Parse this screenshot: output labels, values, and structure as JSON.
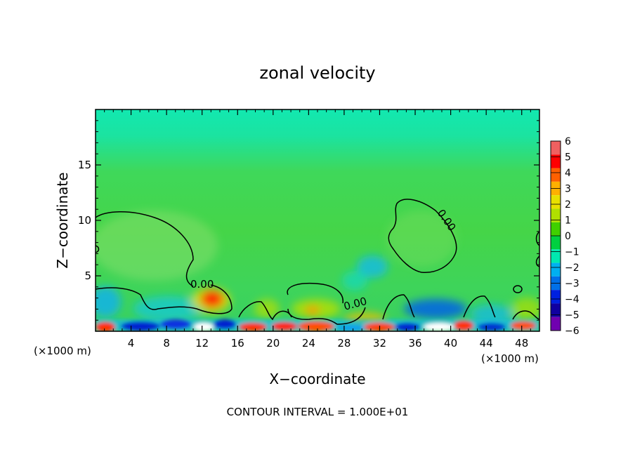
{
  "chart_data": {
    "type": "heatmap",
    "title": "zonal velocity",
    "xlabel": "X−coordinate",
    "ylabel": "Z−coordinate",
    "x_unit": "(×1000 m)",
    "z_unit": "(×1000 m)",
    "xlim": [
      0,
      50
    ],
    "ylim": [
      0,
      20
    ],
    "x_ticks": [
      {
        "value": 4,
        "label": "4"
      },
      {
        "value": 8,
        "label": "8"
      },
      {
        "value": 12,
        "label": "12"
      },
      {
        "value": 16,
        "label": "16"
      },
      {
        "value": 20,
        "label": "20"
      },
      {
        "value": 24,
        "label": "24"
      },
      {
        "value": 28,
        "label": "28"
      },
      {
        "value": 32,
        "label": "32"
      },
      {
        "value": 36,
        "label": "36"
      },
      {
        "value": 40,
        "label": "40"
      },
      {
        "value": 44,
        "label": "44"
      },
      {
        "value": 48,
        "label": "48"
      }
    ],
    "y_ticks": [
      {
        "value": 5,
        "label": "5"
      },
      {
        "value": 10,
        "label": "10"
      },
      {
        "value": 15,
        "label": "15"
      }
    ],
    "colorbar": {
      "levels": [
        "6",
        "5",
        "4",
        "3",
        "2",
        "1",
        "0",
        "−1",
        "−2",
        "−3",
        "−4",
        "−5",
        "−6"
      ],
      "colors": [
        "#f06060",
        "#ff0000",
        "#ff6000",
        "#ffb000",
        "#e8e000",
        "#b0e000",
        "#40d000",
        "#00d040",
        "#00e8b0",
        "#00b0f0",
        "#0070e8",
        "#0020e0",
        "#1000a0",
        "#7000b0"
      ]
    },
    "contour_label": "0.00",
    "footer": "CONTOUR INTERVAL =  1.000E+01"
  }
}
